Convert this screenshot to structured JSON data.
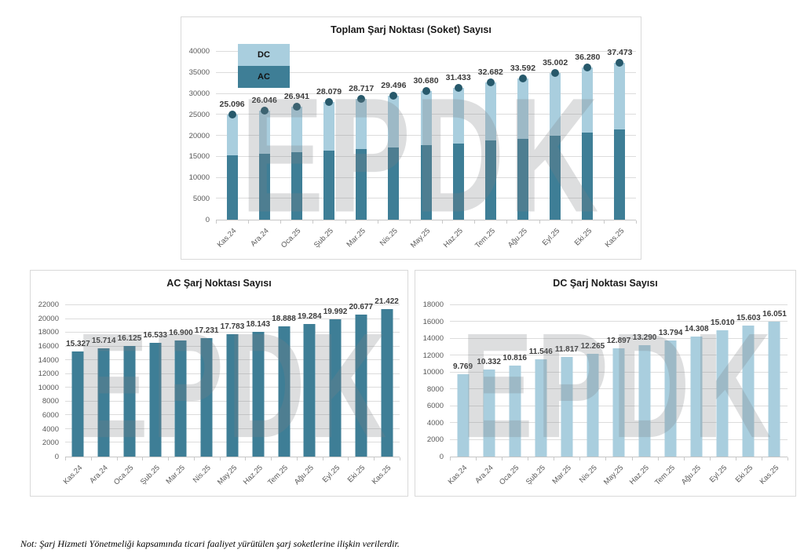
{
  "watermark": "EPDK",
  "note": {
    "text": "Not: Şarj Hizmeti Yönetmeliği kapsamında ticari faaliyet yürütülen şarj soketlerine ilişkin verilerdir."
  },
  "colors": {
    "ac_bar": "#3e7e96",
    "dc_bar": "#a9cede",
    "total_marker": "#27596b",
    "gridline": "#dcdcdc",
    "axis_text": "#595959",
    "value_label_text": "#3b3b3b",
    "panel_border": "#d9d9d9",
    "watermark_gray": "#d4d5d6"
  },
  "chart_data": [
    {
      "id": "total",
      "type": "bar",
      "stacked": true,
      "title": "Toplam Şarj Noktası (Soket) Sayısı",
      "categories": [
        "Kas.24",
        "Ara.24",
        "Oca.25",
        "Şub.25",
        "Mar.25",
        "Nis.25",
        "May.25",
        "Haz.25",
        "Tem.25",
        "Ağu.25",
        "Eyl.25",
        "Eki.25",
        "Kas.25"
      ],
      "series": [
        {
          "name": "AC",
          "color": "#3e7e96",
          "values": [
            15327,
            15714,
            16125,
            16533,
            16900,
            17231,
            17783,
            18143,
            18888,
            19284,
            19992,
            20677,
            21422
          ]
        },
        {
          "name": "DC",
          "color": "#a9cede",
          "values": [
            9769,
            10332,
            10816,
            11546,
            11817,
            12265,
            12897,
            13290,
            13794,
            14308,
            15010,
            15603,
            16051
          ]
        }
      ],
      "totals": [
        25096,
        26046,
        26941,
        28079,
        28717,
        29496,
        30680,
        31433,
        32682,
        33592,
        35002,
        36280,
        37473
      ],
      "total_labels": [
        "25.096",
        "26.046",
        "26.941",
        "28.079",
        "28.717",
        "29.496",
        "30.680",
        "31.433",
        "32.682",
        "33.592",
        "35.002",
        "36.280",
        "37.473"
      ],
      "total_marker": "filled-circle",
      "marker_color": "#27596b",
      "legend": [
        "DC",
        "AC"
      ],
      "legend_position": "inside-top-left",
      "ylim": [
        0,
        40000
      ],
      "yticks": [
        0,
        5000,
        10000,
        15000,
        20000,
        25000,
        30000,
        35000,
        40000
      ],
      "grid": true
    },
    {
      "id": "ac",
      "type": "bar",
      "title": "AC Şarj Noktası Sayısı",
      "bar_color": "#3e7e96",
      "categories": [
        "Kas.24",
        "Ara.24",
        "Oca.25",
        "Şub.25",
        "Mar.25",
        "Nis.25",
        "May.25",
        "Haz.25",
        "Tem.25",
        "Ağu.25",
        "Eyl.25",
        "Eki.25",
        "Kas.25"
      ],
      "values": [
        15327,
        15714,
        16125,
        16533,
        16900,
        17231,
        17783,
        18143,
        18888,
        19284,
        19992,
        20677,
        21422
      ],
      "labels": [
        "15.327",
        "15.714",
        "16.125",
        "16.533",
        "16.900",
        "17.231",
        "17.783",
        "18.143",
        "18.888",
        "19.284",
        "19.992",
        "20.677",
        "21.422"
      ],
      "ylim": [
        0,
        22000
      ],
      "yticks": [
        0,
        2000,
        4000,
        6000,
        8000,
        10000,
        12000,
        14000,
        16000,
        18000,
        20000,
        22000
      ],
      "grid": true
    },
    {
      "id": "dc",
      "type": "bar",
      "title": "DC Şarj Noktası Sayısı",
      "bar_color": "#a9cede",
      "categories": [
        "Kas.24",
        "Ara.24",
        "Oca.25",
        "Şub.25",
        "Mar.25",
        "Nis.25",
        "May.25",
        "Haz.25",
        "Tem.25",
        "Ağu.25",
        "Eyl.25",
        "Eki.25",
        "Kas.25"
      ],
      "values": [
        9769,
        10332,
        10816,
        11546,
        11817,
        12265,
        12897,
        13290,
        13794,
        14308,
        15010,
        15603,
        16051
      ],
      "labels": [
        "9.769",
        "10.332",
        "10.816",
        "11.546",
        "11.817",
        "12.265",
        "12.897",
        "13.290",
        "13.794",
        "14.308",
        "15.010",
        "15.603",
        "16.051"
      ],
      "ylim": [
        0,
        18000
      ],
      "yticks": [
        0,
        2000,
        4000,
        6000,
        8000,
        10000,
        12000,
        14000,
        16000,
        18000
      ],
      "grid": true
    }
  ]
}
